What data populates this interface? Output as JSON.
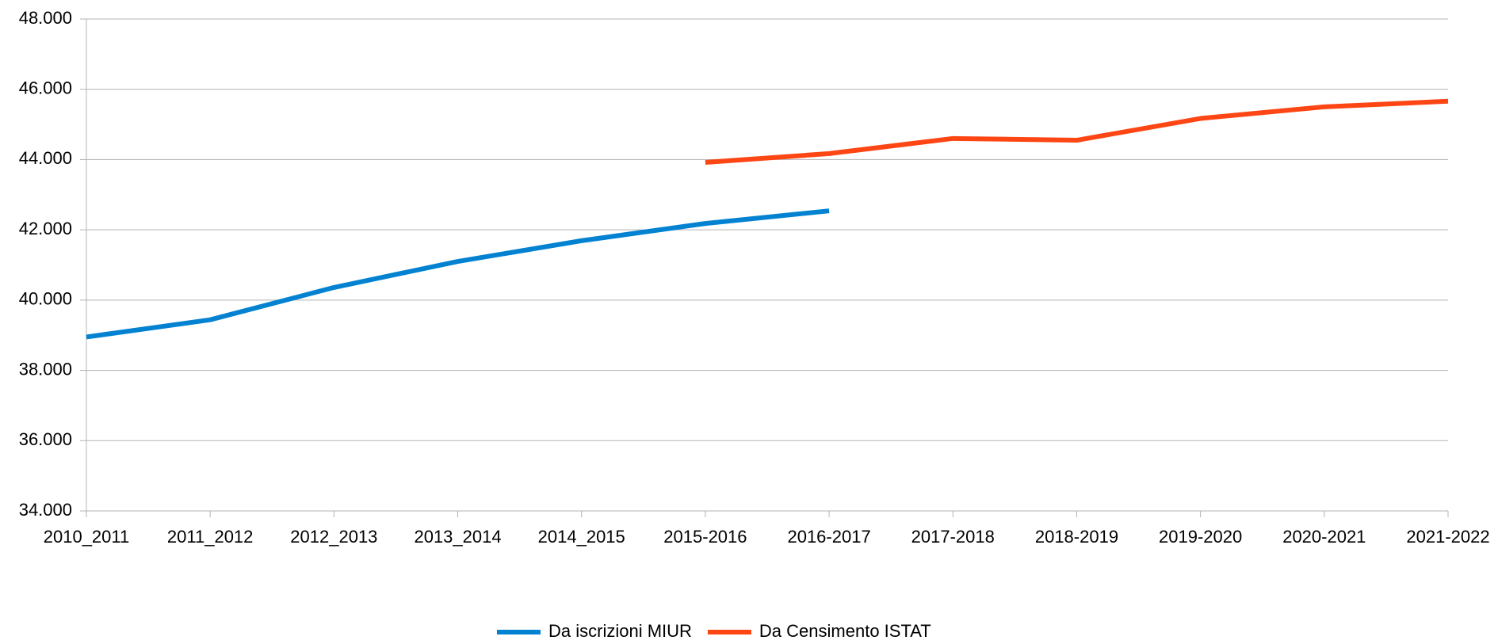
{
  "chart_data": {
    "type": "line",
    "categories": [
      "2010_2011",
      "2011_2012",
      "2012_2013",
      "2013_2014",
      "2014_2015",
      "2015-2016",
      "2016-2017",
      "2017-2018",
      "2018-2019",
      "2019-2020",
      "2020-2021",
      "2021-2022"
    ],
    "series": [
      {
        "name": "Da iscrizioni MIUR",
        "color": "#0382d1",
        "values": [
          38950,
          39440,
          40360,
          41100,
          41690,
          42180,
          42540,
          null,
          null,
          null,
          null,
          null
        ]
      },
      {
        "name": "Da Censimento ISTAT",
        "color": "#fd4614",
        "values": [
          null,
          null,
          null,
          null,
          null,
          43920,
          44170,
          44600,
          44550,
          45170,
          45500,
          45660
        ]
      }
    ],
    "ylim": [
      34000,
      48000
    ],
    "yticks": [
      {
        "value": 34000,
        "label": "34.000"
      },
      {
        "value": 36000,
        "label": "36.000"
      },
      {
        "value": 38000,
        "label": "38.000"
      },
      {
        "value": 40000,
        "label": "40.000"
      },
      {
        "value": 42000,
        "label": "42.000"
      },
      {
        "value": 44000,
        "label": "44.000"
      },
      {
        "value": 46000,
        "label": "46.000"
      },
      {
        "value": 48000,
        "label": "48.000"
      }
    ],
    "grid": true,
    "legend": "bottom"
  }
}
